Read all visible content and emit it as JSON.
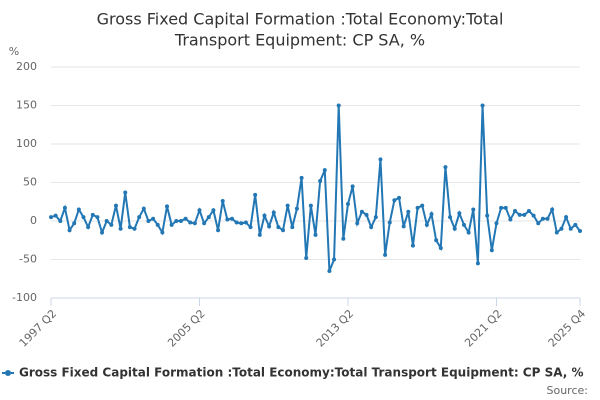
{
  "chart_data": {
    "type": "line",
    "title": [
      "Gross Fixed Capital Formation :Total Economy:Total",
      "Transport Equipment: CP SA, %"
    ],
    "y_label": "%",
    "source": "Source:",
    "categories": [
      "1997 Q2",
      null,
      null,
      null,
      null,
      null,
      null,
      null,
      null,
      null,
      null,
      null,
      null,
      null,
      null,
      null,
      null,
      null,
      null,
      null,
      null,
      null,
      null,
      null,
      null,
      null,
      null,
      null,
      null,
      null,
      null,
      null,
      "2005 Q2",
      null,
      null,
      null,
      null,
      null,
      null,
      null,
      null,
      null,
      null,
      null,
      null,
      null,
      null,
      null,
      null,
      null,
      null,
      null,
      null,
      null,
      null,
      null,
      null,
      null,
      null,
      null,
      null,
      null,
      null,
      null,
      "2013 Q2",
      null,
      null,
      null,
      null,
      null,
      null,
      null,
      null,
      null,
      null,
      null,
      null,
      null,
      null,
      null,
      null,
      null,
      null,
      null,
      null,
      null,
      null,
      null,
      null,
      null,
      null,
      null,
      null,
      null,
      null,
      null,
      "2021 Q2",
      null,
      null,
      null,
      null,
      null,
      null,
      null,
      null,
      null,
      null,
      null,
      null,
      null,
      null,
      null,
      null,
      null,
      "2025 Q4"
    ],
    "series": [
      {
        "name": "Gross Fixed Capital Formation :Total Economy:Total Transport Equipment: CP SA, %",
        "color": "#2277b4",
        "values": [
          5,
          7,
          0,
          17,
          -12,
          -3,
          15,
          5,
          -8,
          8,
          5,
          -15,
          0,
          -5,
          20,
          -10,
          37,
          -8,
          -10,
          5,
          16,
          0,
          3,
          -5,
          -15,
          19,
          -5,
          0,
          0,
          3,
          -2,
          -3,
          14,
          -3,
          5,
          14,
          -12,
          26,
          2,
          3,
          -2,
          -3,
          -2,
          -8,
          34,
          -18,
          7,
          -7,
          11,
          -8,
          -12,
          20,
          -8,
          16,
          56,
          -48,
          20,
          -18,
          52,
          66,
          -65,
          -50,
          150,
          -23,
          22,
          45,
          -3,
          12,
          8,
          -8,
          5,
          80,
          -44,
          -2,
          27,
          30,
          -7,
          12,
          -32,
          17,
          20,
          -5,
          9,
          -25,
          -35,
          70,
          5,
          -10,
          10,
          -5,
          -15,
          15,
          -55,
          150,
          7,
          -38,
          -3,
          17,
          17,
          2,
          13,
          8,
          8,
          13,
          7,
          -3,
          3,
          3,
          15,
          -15,
          -10,
          5,
          -10,
          -5,
          -13
        ]
      }
    ],
    "ylim": [
      -100,
      200
    ],
    "yticks": [
      -100,
      -50,
      0,
      50,
      100,
      150,
      200
    ],
    "grid": true
  }
}
